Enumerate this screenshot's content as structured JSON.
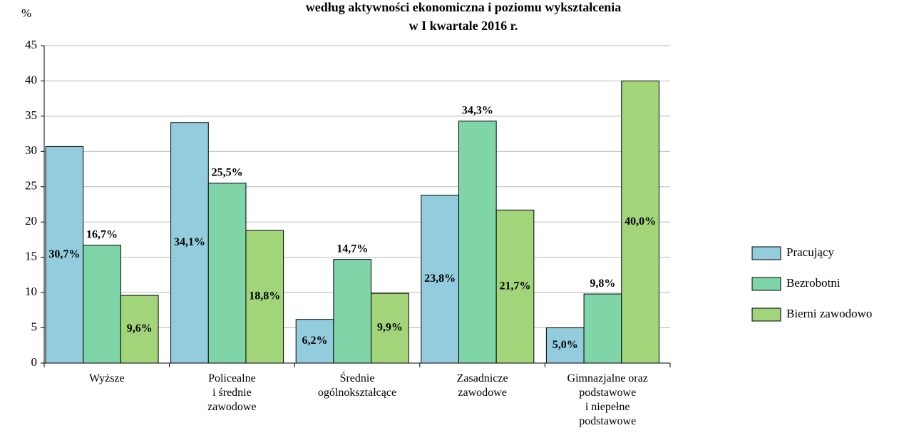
{
  "chart_data": {
    "type": "bar",
    "title": [
      "według aktywności ekonomiczna i poziomu wykształcenia",
      "w I kwartale 2016 r."
    ],
    "y_unit": "%",
    "categories": [
      "Wyższe",
      "Policealne\ni średnie\nzawodowe",
      "Średnie\nogólnokształcące",
      "Zasadnicze\nzawodowe",
      "Gimnazjalne oraz\npodstawowe\ni niepełne\npodstawowe"
    ],
    "series": [
      {
        "name": "Pracujący",
        "color": "#93cddd",
        "values": [
          30.7,
          34.1,
          6.2,
          23.8,
          5.0
        ],
        "value_labels": [
          "30,7%",
          "34,1%",
          "6,2%",
          "23,8%",
          "5,0%"
        ]
      },
      {
        "name": "Bezrobotni",
        "color": "#7fd5a8",
        "values": [
          16.7,
          25.5,
          14.7,
          34.3,
          9.8
        ],
        "value_labels": [
          "16,7%",
          "25,5%",
          "14,7%",
          "34,3%",
          "9,8%"
        ]
      },
      {
        "name": "Bierni zawodowo",
        "color": "#a2d57a",
        "values": [
          9.6,
          18.8,
          9.9,
          21.7,
          40.0
        ],
        "value_labels": [
          "9,6%",
          "18,8%",
          "9,9%",
          "21,7%",
          "40,0%"
        ]
      }
    ],
    "ylim": [
      0,
      45
    ],
    "yticks": [
      0,
      5,
      10,
      15,
      20,
      25,
      30,
      35,
      40,
      45
    ],
    "grid": true,
    "legend": "right"
  }
}
